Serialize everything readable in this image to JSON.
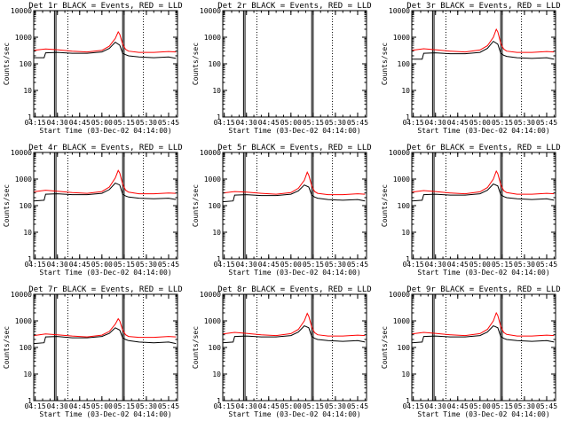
{
  "chart_data": [
    {
      "type": "line",
      "title": "Det 1r  BLACK = Events, RED = LLD",
      "xlabel": "Start Time (03-Dec-02 04:14:00)",
      "ylabel": "Counts/sec",
      "yscale": "log",
      "ylim": [
        1,
        10000
      ],
      "x_ticks": [
        "04:15",
        "04:30",
        "04:45",
        "05:00",
        "05:15",
        "05:30",
        "05:45"
      ],
      "y_ticks": [
        "1",
        "10",
        "100",
        "1000",
        "10000"
      ],
      "series": [
        {
          "name": "Events",
          "color": "#000000",
          "x": [
            "04:14",
            "04:21",
            "04:22",
            "04:30",
            "04:40",
            "04:50",
            "05:00",
            "05:05",
            "05:09",
            "05:12",
            "05:14",
            "05:16",
            "05:18",
            "05:25",
            "05:35",
            "05:45",
            "05:50"
          ],
          "values": [
            170,
            170,
            260,
            270,
            250,
            250,
            280,
            380,
            650,
            500,
            250,
            220,
            200,
            180,
            170,
            180,
            160
          ]
        },
        {
          "name": "LLD",
          "color": "#ff0000",
          "x": [
            "04:14",
            "04:22",
            "04:30",
            "04:40",
            "04:50",
            "05:00",
            "05:05",
            "05:09",
            "05:11",
            "05:12",
            "05:14",
            "05:16",
            "05:18",
            "05:25",
            "05:35",
            "05:45",
            "05:50"
          ],
          "values": [
            320,
            360,
            340,
            300,
            280,
            320,
            460,
            900,
            1600,
            1300,
            550,
            350,
            300,
            270,
            270,
            290,
            280
          ]
        }
      ]
    },
    {
      "type": "line",
      "title": "Det 2r  BLACK = Events, RED = LLD",
      "xlabel": "Start Time (03-Dec-02 04:14:00)",
      "ylabel": "Counts/sec",
      "yscale": "log",
      "ylim": [
        1,
        10000
      ],
      "x_ticks": [
        "04:15",
        "04:30",
        "04:45",
        "05:00",
        "05:15",
        "05:30",
        "05:45"
      ],
      "y_ticks": [
        "1",
        "10",
        "100",
        "1000",
        "10000"
      ],
      "series": []
    },
    {
      "type": "line",
      "title": "Det 3r  BLACK = Events, RED = LLD",
      "xlabel": "Start Time (03-Dec-02 04:14:00)",
      "ylabel": "Counts/sec",
      "yscale": "log",
      "ylim": [
        1,
        10000
      ],
      "x_ticks": [
        "04:15",
        "04:30",
        "04:45",
        "05:00",
        "05:15",
        "05:30",
        "05:45"
      ],
      "y_ticks": [
        "1",
        "10",
        "100",
        "1000",
        "10000"
      ],
      "series": [
        {
          "name": "Events",
          "color": "#000000",
          "x": [
            "04:14",
            "04:21",
            "04:22",
            "04:30",
            "04:40",
            "04:50",
            "05:00",
            "05:05",
            "05:09",
            "05:12",
            "05:14",
            "05:16",
            "05:18",
            "05:25",
            "05:35",
            "05:45",
            "05:50"
          ],
          "values": [
            150,
            150,
            250,
            260,
            240,
            240,
            270,
            380,
            700,
            550,
            250,
            210,
            190,
            170,
            160,
            170,
            150
          ]
        },
        {
          "name": "LLD",
          "color": "#ff0000",
          "x": [
            "04:14",
            "04:22",
            "04:30",
            "04:40",
            "04:50",
            "05:00",
            "05:05",
            "05:09",
            "05:11",
            "05:12",
            "05:14",
            "05:16",
            "05:18",
            "05:25",
            "05:35",
            "05:45",
            "05:50"
          ],
          "values": [
            320,
            370,
            340,
            300,
            280,
            330,
            480,
            1000,
            2000,
            1600,
            600,
            360,
            300,
            270,
            270,
            290,
            280
          ]
        }
      ]
    },
    {
      "type": "line",
      "title": "Det 4r  BLACK = Events, RED = LLD",
      "xlabel": "Start Time (03-Dec-02 04:14:00)",
      "ylabel": "Counts/sec",
      "yscale": "log",
      "ylim": [
        1,
        10000
      ],
      "x_ticks": [
        "04:15",
        "04:30",
        "04:45",
        "05:00",
        "05:15",
        "05:30",
        "05:45"
      ],
      "y_ticks": [
        "1",
        "10",
        "100",
        "1000",
        "10000"
      ],
      "series": [
        {
          "name": "Events",
          "color": "#000000",
          "x": [
            "04:14",
            "04:21",
            "04:22",
            "04:30",
            "04:40",
            "04:50",
            "05:00",
            "05:05",
            "05:09",
            "05:12",
            "05:14",
            "05:16",
            "05:18",
            "05:25",
            "05:35",
            "05:45",
            "05:50"
          ],
          "values": [
            150,
            160,
            270,
            280,
            260,
            260,
            290,
            400,
            700,
            600,
            270,
            230,
            210,
            190,
            180,
            190,
            170
          ]
        },
        {
          "name": "LLD",
          "color": "#ff0000",
          "x": [
            "04:14",
            "04:22",
            "04:30",
            "04:40",
            "04:50",
            "05:00",
            "05:05",
            "05:09",
            "05:11",
            "05:12",
            "05:14",
            "05:16",
            "05:18",
            "05:25",
            "05:35",
            "05:45",
            "05:50"
          ],
          "values": [
            330,
            380,
            350,
            310,
            290,
            340,
            500,
            1100,
            2100,
            1700,
            650,
            380,
            320,
            280,
            280,
            300,
            290
          ]
        }
      ]
    },
    {
      "type": "line",
      "title": "Det 5r  BLACK = Events, RED = LLD",
      "xlabel": "Start Time (03-Dec-02 04:14:00)",
      "ylabel": "Counts/sec",
      "yscale": "log",
      "ylim": [
        1,
        10000
      ],
      "x_ticks": [
        "04:15",
        "04:30",
        "04:45",
        "05:00",
        "05:15",
        "05:30",
        "05:45"
      ],
      "y_ticks": [
        "1",
        "10",
        "100",
        "1000",
        "10000"
      ],
      "series": [
        {
          "name": "Events",
          "color": "#000000",
          "x": [
            "04:14",
            "04:21",
            "04:22",
            "04:30",
            "04:40",
            "04:50",
            "05:00",
            "05:05",
            "05:09",
            "05:12",
            "05:14",
            "05:16",
            "05:18",
            "05:25",
            "05:35",
            "05:45",
            "05:50"
          ],
          "values": [
            140,
            150,
            250,
            260,
            240,
            240,
            270,
            360,
            600,
            500,
            250,
            210,
            190,
            170,
            160,
            170,
            150
          ]
        },
        {
          "name": "LLD",
          "color": "#ff0000",
          "x": [
            "04:14",
            "04:22",
            "04:30",
            "04:40",
            "04:50",
            "05:00",
            "05:05",
            "05:09",
            "05:11",
            "05:12",
            "05:14",
            "05:16",
            "05:18",
            "05:25",
            "05:35",
            "05:45",
            "05:50"
          ],
          "values": [
            300,
            340,
            320,
            290,
            270,
            310,
            450,
            900,
            1800,
            1400,
            560,
            340,
            290,
            260,
            260,
            280,
            270
          ]
        }
      ]
    },
    {
      "type": "line",
      "title": "Det 6r  BLACK = Events, RED = LLD",
      "xlabel": "Start Time (03-Dec-02 04:14:00)",
      "ylabel": "Counts/sec",
      "yscale": "log",
      "ylim": [
        1,
        10000
      ],
      "x_ticks": [
        "04:15",
        "04:30",
        "04:45",
        "05:00",
        "05:15",
        "05:30",
        "05:45"
      ],
      "y_ticks": [
        "1",
        "10",
        "100",
        "1000",
        "10000"
      ],
      "series": [
        {
          "name": "Events",
          "color": "#000000",
          "x": [
            "04:14",
            "04:21",
            "04:22",
            "04:30",
            "04:40",
            "04:50",
            "05:00",
            "05:05",
            "05:09",
            "05:12",
            "05:14",
            "05:16",
            "05:18",
            "05:25",
            "05:35",
            "05:45",
            "05:50"
          ],
          "values": [
            150,
            160,
            260,
            270,
            250,
            250,
            280,
            380,
            650,
            550,
            260,
            220,
            200,
            180,
            170,
            180,
            160
          ]
        },
        {
          "name": "LLD",
          "color": "#ff0000",
          "x": [
            "04:14",
            "04:22",
            "04:30",
            "04:40",
            "04:50",
            "05:00",
            "05:05",
            "05:09",
            "05:11",
            "05:12",
            "05:14",
            "05:16",
            "05:18",
            "05:25",
            "05:35",
            "05:45",
            "05:50"
          ],
          "values": [
            320,
            370,
            340,
            300,
            280,
            330,
            480,
            1000,
            2000,
            1600,
            620,
            370,
            310,
            270,
            270,
            290,
            280
          ]
        }
      ]
    },
    {
      "type": "line",
      "title": "Det 7r  BLACK = Events, RED = LLD",
      "xlabel": "Start Time (03-Dec-02 04:14:00)",
      "ylabel": "Counts/sec",
      "yscale": "log",
      "ylim": [
        1,
        10000
      ],
      "x_ticks": [
        "04:15",
        "04:30",
        "04:45",
        "05:00",
        "05:15",
        "05:30",
        "05:45"
      ],
      "y_ticks": [
        "1",
        "10",
        "100",
        "1000",
        "10000"
      ],
      "series": [
        {
          "name": "Events",
          "color": "#000000",
          "x": [
            "04:14",
            "04:21",
            "04:22",
            "04:30",
            "04:40",
            "04:50",
            "05:00",
            "05:05",
            "05:09",
            "05:12",
            "05:14",
            "05:16",
            "05:18",
            "05:25",
            "05:35",
            "05:45",
            "05:50"
          ],
          "values": [
            140,
            150,
            250,
            260,
            230,
            230,
            260,
            340,
            550,
            450,
            230,
            200,
            180,
            160,
            150,
            160,
            140
          ]
        },
        {
          "name": "LLD",
          "color": "#ff0000",
          "x": [
            "04:14",
            "04:22",
            "04:30",
            "04:40",
            "04:50",
            "05:00",
            "05:05",
            "05:09",
            "05:11",
            "05:12",
            "05:14",
            "05:16",
            "05:18",
            "05:25",
            "05:35",
            "05:45",
            "05:50"
          ],
          "values": [
            280,
            320,
            300,
            270,
            250,
            290,
            400,
            750,
            1200,
            1000,
            450,
            300,
            260,
            240,
            240,
            260,
            250
          ]
        }
      ]
    },
    {
      "type": "line",
      "title": "Det 8r  BLACK = Events, RED = LLD",
      "xlabel": "Start Time (03-Dec-02 04:14:00)",
      "ylabel": "Counts/sec",
      "yscale": "log",
      "ylim": [
        1,
        10000
      ],
      "x_ticks": [
        "04:15",
        "04:30",
        "04:45",
        "05:00",
        "05:15",
        "05:30",
        "05:45"
      ],
      "y_ticks": [
        "1",
        "10",
        "100",
        "1000",
        "10000"
      ],
      "series": [
        {
          "name": "Events",
          "color": "#000000",
          "x": [
            "04:14",
            "04:21",
            "04:22",
            "04:30",
            "04:40",
            "04:50",
            "05:00",
            "05:05",
            "05:09",
            "05:12",
            "05:14",
            "05:16",
            "05:18",
            "05:25",
            "05:35",
            "05:45",
            "05:50"
          ],
          "values": [
            150,
            160,
            260,
            270,
            250,
            250,
            280,
            380,
            650,
            550,
            260,
            220,
            200,
            180,
            170,
            180,
            160
          ]
        },
        {
          "name": "LLD",
          "color": "#ff0000",
          "x": [
            "04:14",
            "04:22",
            "04:30",
            "04:40",
            "04:50",
            "05:00",
            "05:05",
            "05:09",
            "05:11",
            "05:12",
            "05:14",
            "05:16",
            "05:18",
            "05:25",
            "05:35",
            "05:45",
            "05:50"
          ],
          "values": [
            320,
            370,
            340,
            300,
            280,
            330,
            480,
            1000,
            1900,
            1500,
            600,
            360,
            300,
            270,
            270,
            290,
            280
          ]
        }
      ]
    },
    {
      "type": "line",
      "title": "Det 9r  BLACK = Events, RED = LLD",
      "xlabel": "Start Time (03-Dec-02 04:14:00)",
      "ylabel": "Counts/sec",
      "yscale": "log",
      "ylim": [
        1,
        10000
      ],
      "x_ticks": [
        "04:15",
        "04:30",
        "04:45",
        "05:00",
        "05:15",
        "05:30",
        "05:45"
      ],
      "y_ticks": [
        "1",
        "10",
        "100",
        "1000",
        "10000"
      ],
      "series": [
        {
          "name": "Events",
          "color": "#000000",
          "x": [
            "04:14",
            "04:21",
            "04:22",
            "04:30",
            "04:40",
            "04:50",
            "05:00",
            "05:05",
            "05:09",
            "05:12",
            "05:14",
            "05:16",
            "05:18",
            "05:25",
            "05:35",
            "05:45",
            "05:50"
          ],
          "values": [
            150,
            160,
            260,
            270,
            250,
            250,
            280,
            380,
            650,
            550,
            260,
            220,
            200,
            180,
            170,
            180,
            160
          ]
        },
        {
          "name": "LLD",
          "color": "#ff0000",
          "x": [
            "04:14",
            "04:22",
            "04:30",
            "04:40",
            "04:50",
            "05:00",
            "05:05",
            "05:09",
            "05:11",
            "05:12",
            "05:14",
            "05:16",
            "05:18",
            "05:25",
            "05:35",
            "05:45",
            "05:50"
          ],
          "values": [
            320,
            370,
            340,
            300,
            280,
            330,
            480,
            1000,
            2000,
            1600,
            620,
            370,
            310,
            270,
            270,
            290,
            280
          ]
        }
      ]
    }
  ],
  "markers": {
    "solid_lines": [
      "04:28",
      "04:29",
      "05:14",
      "05:15"
    ],
    "dotted_lines": [
      "04:37",
      "05:28"
    ],
    "solid_color": "#000000",
    "dotted_color": "#000000"
  }
}
